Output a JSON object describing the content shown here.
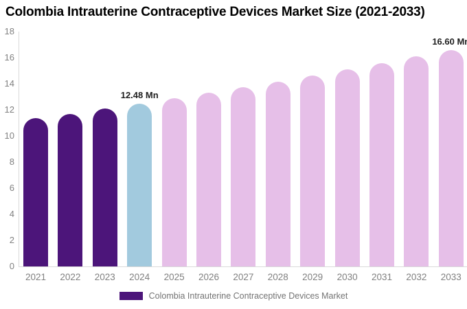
{
  "chart_data": {
    "type": "bar",
    "title": "Colombia Intrauterine Contraceptive Devices Market Size (2021-2033)",
    "categories": [
      "2021",
      "2022",
      "2023",
      "2024",
      "2025",
      "2026",
      "2027",
      "2028",
      "2029",
      "2030",
      "2031",
      "2032",
      "2033"
    ],
    "series": [
      {
        "name": "Colombia Intrauterine Contraceptive Devices Market",
        "values": [
          11.35,
          11.71,
          12.09,
          12.48,
          12.88,
          13.3,
          13.73,
          14.17,
          14.63,
          15.1,
          15.58,
          16.08,
          16.6
        ]
      }
    ],
    "unit": "Mn",
    "bar_colors": [
      "#4c157a",
      "#4c157a",
      "#4c157a",
      "#a2cade",
      "#e6bfe8",
      "#e6bfe8",
      "#e6bfe8",
      "#e6bfe8",
      "#e6bfe8",
      "#e6bfe8",
      "#e6bfe8",
      "#e6bfe8",
      "#e6bfe8"
    ],
    "annotations": [
      {
        "category": "2024",
        "label": "12.48 Mn"
      },
      {
        "category": "2033",
        "label": "16.60 Mn"
      }
    ],
    "ylim": [
      0,
      18
    ],
    "yticks": [
      0,
      2,
      4,
      6,
      8,
      10,
      12,
      14,
      16,
      18
    ],
    "grid": false,
    "legend": {
      "position": "bottom",
      "items": [
        {
          "label": "Colombia Intrauterine Contraceptive Devices Market",
          "color": "#4c157a"
        }
      ]
    },
    "colors": {
      "axis_line": "#d9d9d9",
      "tick_label": "#808080",
      "annotation_text": "#1f1f1f",
      "title_text": "#000000",
      "legend_text": "#737373"
    }
  }
}
